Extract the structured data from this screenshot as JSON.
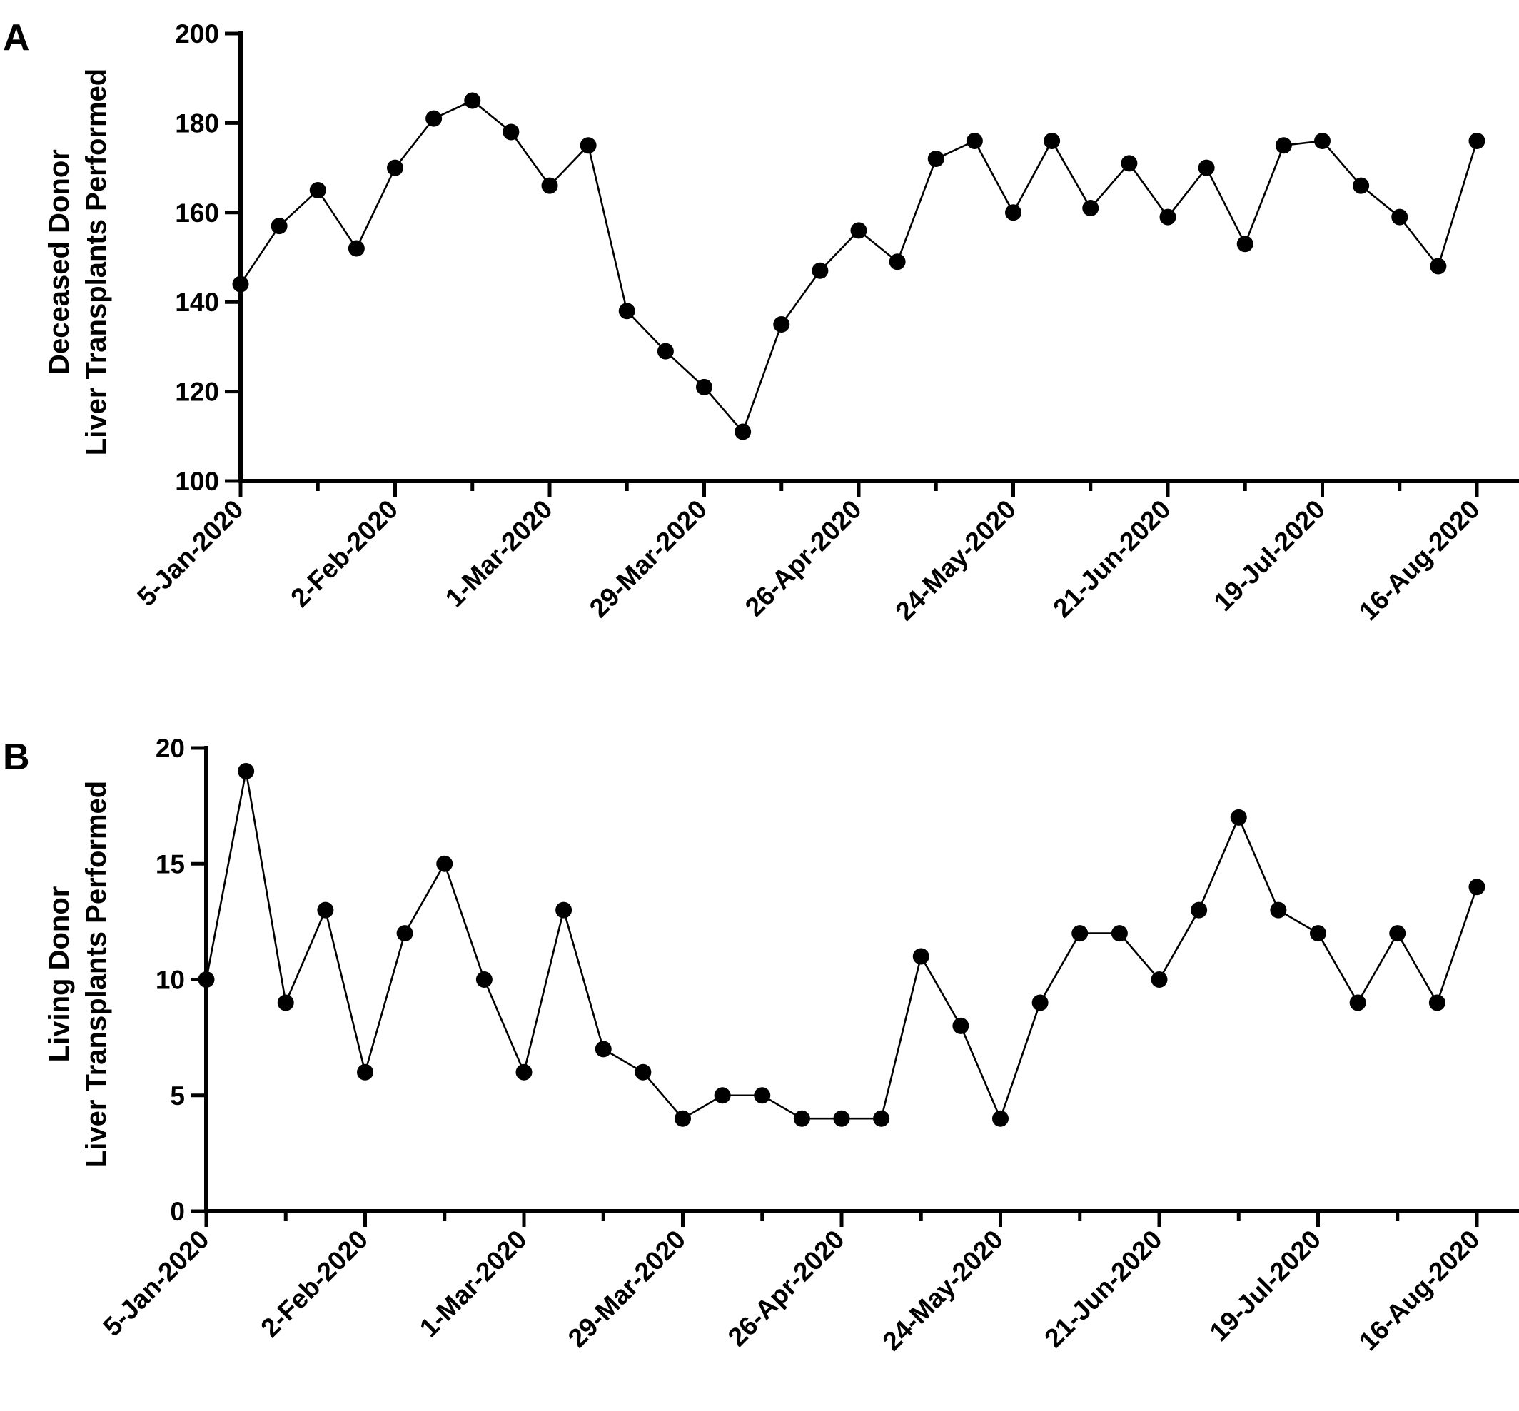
{
  "chart_data": [
    {
      "type": "line",
      "panel_label": "A",
      "ylabel_lines": [
        "Deceased Donor",
        "Liver Transplants Performed"
      ],
      "xlabel": "",
      "ylim": [
        100,
        200
      ],
      "yticks": [
        100,
        120,
        140,
        160,
        180,
        200
      ],
      "x_tick_labels": [
        "5-Jan-2020",
        "2-Feb-2020",
        "1-Mar-2020",
        "29-Mar-2020",
        "26-Apr-2020",
        "24-May-2020",
        "21-Jun-2020",
        "19-Jul-2020",
        "16-Aug-2020"
      ],
      "x_start": "5-Jan-2020",
      "x_interval": "weekly",
      "grid": false,
      "marker": "circle",
      "series": [
        {
          "values": [
            144,
            157,
            165,
            152,
            170,
            181,
            185,
            178,
            166,
            175,
            138,
            129,
            121,
            111,
            135,
            147,
            156,
            149,
            172,
            176,
            160,
            176,
            161,
            171,
            159,
            170,
            153,
            175,
            176,
            166,
            159,
            148,
            176
          ]
        }
      ]
    },
    {
      "type": "line",
      "panel_label": "B",
      "ylabel_lines": [
        "Living Donor",
        "Liver Transplants Performed"
      ],
      "xlabel": "",
      "ylim": [
        0,
        20
      ],
      "yticks": [
        0,
        5,
        10,
        15,
        20
      ],
      "x_tick_labels": [
        "5-Jan-2020",
        "2-Feb-2020",
        "1-Mar-2020",
        "29-Mar-2020",
        "26-Apr-2020",
        "24-May-2020",
        "21-Jun-2020",
        "19-Jul-2020",
        "16-Aug-2020"
      ],
      "x_start": "5-Jan-2020",
      "x_interval": "weekly",
      "grid": false,
      "marker": "circle",
      "series": [
        {
          "values": [
            10,
            19,
            9,
            13,
            6,
            12,
            15,
            10,
            6,
            13,
            7,
            6,
            4,
            5,
            5,
            4,
            4,
            4,
            11,
            8,
            4,
            9,
            12,
            12,
            10,
            13,
            17,
            13,
            12,
            9,
            12,
            9,
            14
          ]
        }
      ]
    }
  ]
}
